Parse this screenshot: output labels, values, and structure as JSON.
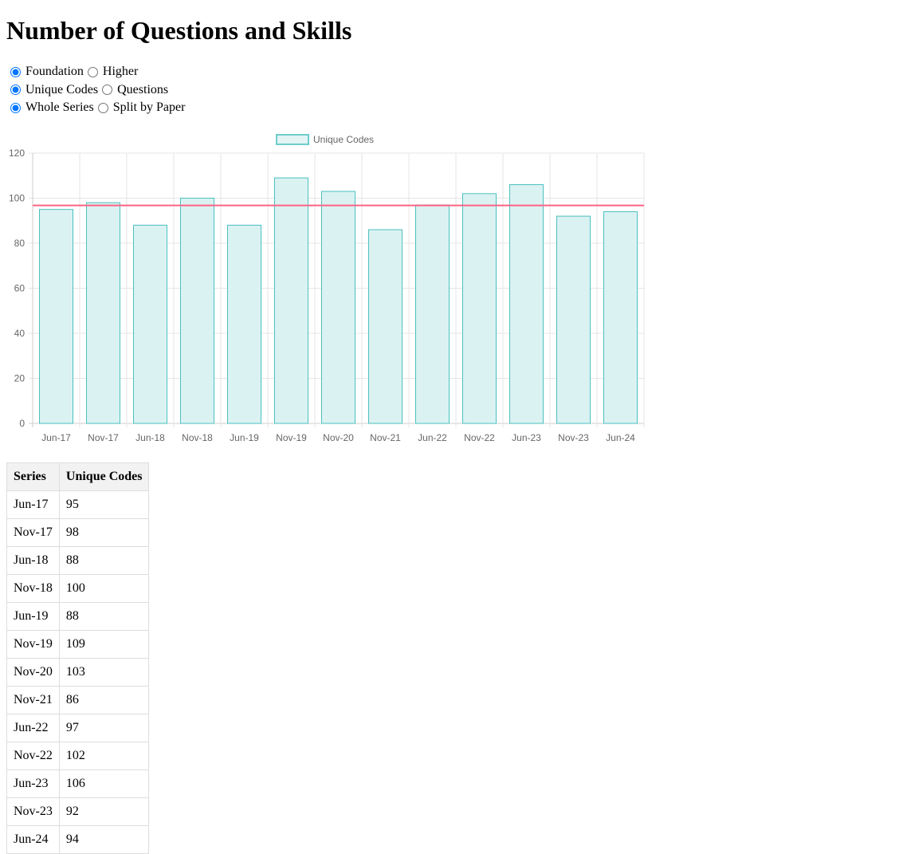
{
  "page_title": "Number of Questions and Skills",
  "options": [
    [
      {
        "label": "Foundation",
        "checked": true
      },
      {
        "label": "Higher",
        "checked": false
      }
    ],
    [
      {
        "label": "Unique Codes",
        "checked": true
      },
      {
        "label": "Questions",
        "checked": false
      }
    ],
    [
      {
        "label": "Whole Series",
        "checked": true
      },
      {
        "label": "Split by Paper",
        "checked": false
      }
    ]
  ],
  "chart_data": {
    "type": "bar",
    "categories": [
      "Jun-17",
      "Nov-17",
      "Jun-18",
      "Nov-18",
      "Jun-19",
      "Nov-19",
      "Nov-20",
      "Nov-21",
      "Jun-22",
      "Nov-22",
      "Jun-23",
      "Nov-23",
      "Jun-24"
    ],
    "series": [
      {
        "name": "Unique Codes",
        "values": [
          95,
          98,
          88,
          100,
          88,
          109,
          103,
          86,
          97,
          102,
          106,
          92,
          94
        ],
        "color": "#4bc0c0",
        "fill": "#dbf2f2"
      }
    ],
    "reference_line": {
      "value": 96.77,
      "color": "#ff6384"
    },
    "ylim": [
      0,
      120
    ],
    "yticks": [
      0,
      20,
      40,
      60,
      80,
      100,
      120
    ],
    "grid": true,
    "legend": "top"
  },
  "table": {
    "headers": [
      "Series",
      "Unique Codes"
    ]
  }
}
